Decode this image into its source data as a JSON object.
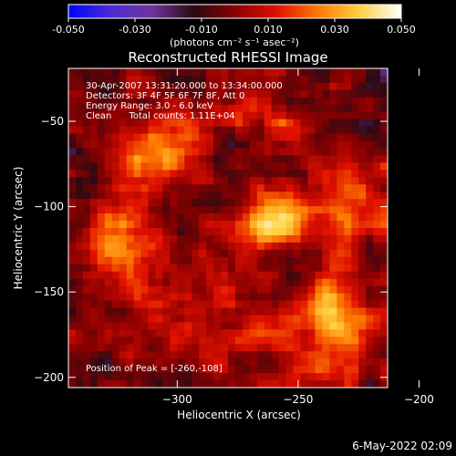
{
  "chart_data": {
    "type": "heatmap",
    "title": "Reconstructed RHESSI Image",
    "xlabel": "Heliocentric X (arcsec)",
    "ylabel": "Heliocentric Y (arcsec)",
    "xlim": [
      -345,
      -213
    ],
    "ylim": [
      -206,
      -19
    ],
    "xticks": [
      -300,
      -250,
      -200
    ],
    "yticks": [
      -50,
      -100,
      -150,
      -200
    ],
    "colorbar": {
      "min": -0.05,
      "max": 0.05,
      "ticks": [
        "-0.050",
        "-0.030",
        "-0.010",
        "0.010",
        "0.030",
        "0.050"
      ],
      "units": "(photons cm⁻² s⁻¹ asec⁻²)",
      "colors": [
        "#0000ff",
        "#4a2bd6",
        "#7033a0",
        "#2a0a14",
        "#8a0000",
        "#e01000",
        "#ff7a00",
        "#ffd040",
        "#ffffff"
      ]
    },
    "annotations": [
      "30-Apr-2007 13:31:20.000 to 13:34:00.000",
      "Detectors: 3F 4F 5F 6F 7F 8F, Att 0",
      "Energy Range: 3.0 - 6.0 keV",
      "Clean      Total counts: 1.11E+04"
    ],
    "peak_label": "Position of Peak = [-260,-108]",
    "peak": [
      -260,
      -108
    ],
    "sources": [
      {
        "x": -260,
        "y": -108,
        "peak": 0.05
      },
      {
        "x": -214,
        "y": -102,
        "peak": 0.03
      },
      {
        "x": -232,
        "y": -165,
        "peak": 0.035
      },
      {
        "x": -305,
        "y": -75,
        "peak": 0.02
      },
      {
        "x": -320,
        "y": -120,
        "peak": 0.02
      },
      {
        "x": -290,
        "y": -150,
        "peak": 0.018
      },
      {
        "x": -240,
        "y": -195,
        "peak": 0.02
      }
    ],
    "date_stamp": "6-May-2022 02:09"
  }
}
